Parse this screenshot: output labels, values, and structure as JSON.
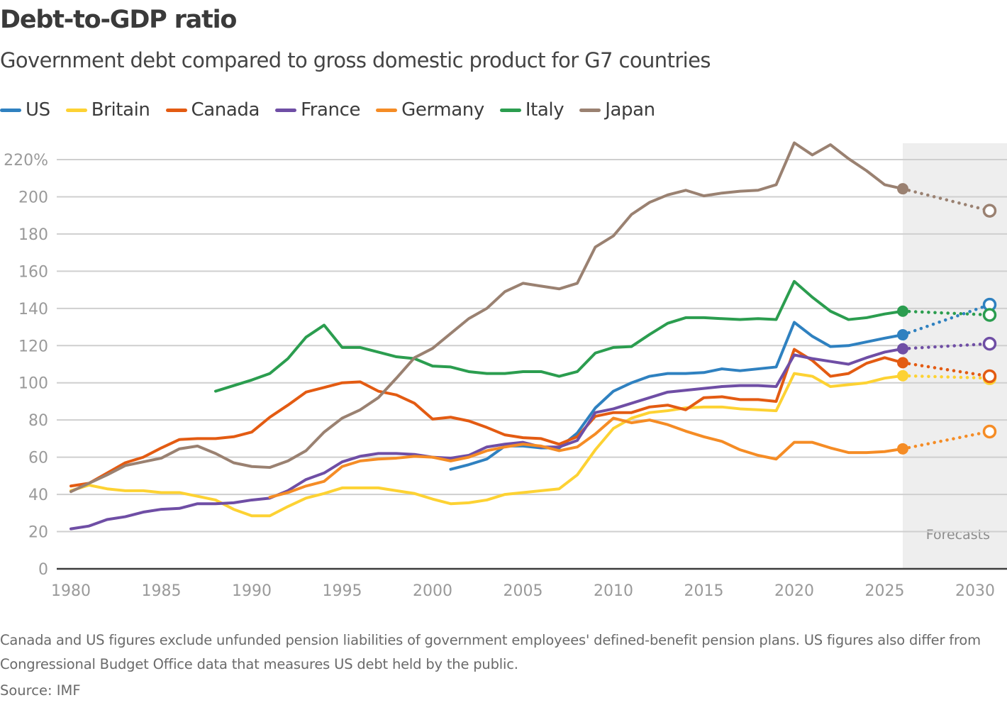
{
  "header": {
    "title": "Debt-to-GDP ratio",
    "subtitle": "Government debt compared to gross domestic product for G7 countries"
  },
  "footer": {
    "note": "Canada and US figures exclude unfunded pension liabilities of government employees' defined-benefit pension plans. US figures also differ from Congressional Budget Office data that measures US debt held by the public.",
    "source": "Source: IMF"
  },
  "chart_data": {
    "type": "line",
    "title": "Debt-to-GDP ratio",
    "subtitle": "Government debt compared to gross domestic product for G7 countries",
    "xlabel": "",
    "ylabel": "",
    "xlim": [
      1980,
      2032
    ],
    "ylim": [
      0,
      220
    ],
    "x_ticks": [
      1980,
      1985,
      1990,
      1995,
      2000,
      2005,
      2010,
      2015,
      2020,
      2025,
      2030
    ],
    "y_ticks": [
      0,
      20,
      40,
      60,
      80,
      100,
      120,
      140,
      160,
      180,
      200,
      220
    ],
    "y_tick_labels": [
      "0",
      "20",
      "40",
      "60",
      "80",
      "100",
      "120",
      "140",
      "160",
      "180",
      "200",
      "220%"
    ],
    "grid": true,
    "legend_position": "top-left",
    "forecast_region": {
      "start": 2026,
      "end": 2032,
      "label": "Forecasts"
    },
    "forecast_year": 2031,
    "series": [
      {
        "name": "US",
        "color": "#2f81c0",
        "start_year": 2001,
        "values": [
          53.5,
          56,
          59,
          66,
          66,
          65,
          65,
          73,
          86.5,
          95.5,
          100,
          103.5,
          105,
          105,
          105.5,
          107.5,
          106.5,
          107.5,
          108.5,
          132.5,
          125,
          119.5,
          120,
          122,
          124,
          125.8
        ],
        "forecast": 142
      },
      {
        "name": "Britain",
        "color": "#fdd233",
        "start_year": 1980,
        "values": [
          42,
          45,
          43,
          42,
          42,
          41,
          41,
          39,
          37,
          32,
          28.5,
          28.5,
          33.5,
          38,
          40.5,
          43.5,
          43.5,
          43.5,
          42,
          40.5,
          37.5,
          35,
          35.5,
          37,
          40,
          41,
          42,
          43,
          50.5,
          64,
          75.5,
          81,
          84,
          85,
          86.5,
          87,
          87,
          86,
          85.5,
          85,
          105,
          103.5,
          98,
          99,
          100,
          102.5,
          103.8
        ],
        "forecast": 102.5
      },
      {
        "name": "Canada",
        "color": "#e35b12",
        "start_year": 1980,
        "values": [
          44.5,
          46,
          51.5,
          57,
          60,
          65,
          69.5,
          70,
          70,
          71,
          73.5,
          81.5,
          88,
          95,
          97.5,
          100,
          100.5,
          95.5,
          93.5,
          89,
          80.5,
          81.5,
          79.5,
          76,
          72,
          70.5,
          70,
          67,
          71,
          82,
          84,
          84,
          87,
          88,
          85.5,
          92,
          92.5,
          91,
          91,
          90,
          118,
          112,
          103.5,
          105,
          110.5,
          113.5,
          110.8
        ],
        "forecast": 103.5
      },
      {
        "name": "France",
        "color": "#6f4ea5",
        "start_year": 1980,
        "values": [
          21.5,
          23,
          26.5,
          28,
          30.5,
          32,
          32.5,
          35,
          35,
          35.5,
          37,
          38,
          42,
          48,
          51.5,
          57.5,
          60.5,
          62,
          62,
          61.5,
          60,
          59.5,
          61,
          65.5,
          67,
          68,
          65.5,
          65.5,
          69,
          84,
          86,
          89,
          92,
          95,
          96,
          97,
          98,
          98.5,
          98.5,
          98,
          115,
          113,
          111.5,
          110,
          113.5,
          116.5,
          118.3
        ],
        "forecast": 121
      },
      {
        "name": "Germany",
        "color": "#f58c25",
        "start_year": 1991,
        "values": [
          38.5,
          41,
          44.5,
          47,
          55,
          58,
          59,
          59.5,
          60.5,
          60,
          58,
          60,
          63.5,
          65.5,
          67,
          66,
          63.5,
          65.5,
          72.5,
          81,
          78.5,
          80,
          77.5,
          74,
          71,
          68.5,
          64,
          61,
          59,
          68,
          68,
          65,
          62.5,
          62.5,
          63,
          64.5
        ],
        "forecast": 73.8
      },
      {
        "name": "Italy",
        "color": "#2b9d4f",
        "start_year": 1988,
        "values": [
          95.5,
          98.5,
          101.5,
          105,
          113,
          124.5,
          131,
          119,
          119,
          116.5,
          114,
          113,
          109,
          108.5,
          106,
          105,
          105,
          106,
          106,
          103.5,
          106,
          116,
          119,
          119.5,
          126,
          132,
          135,
          135,
          134.5,
          134,
          134.5,
          134,
          154.5,
          146,
          138.5,
          134,
          135,
          137,
          138.5
        ],
        "forecast": 136.5
      },
      {
        "name": "Japan",
        "color": "#9a8171",
        "start_year": 1980,
        "values": [
          41.5,
          46,
          50.5,
          55.5,
          57.5,
          59.5,
          64.5,
          66,
          62,
          57,
          55,
          54.5,
          58,
          63.5,
          73.5,
          81,
          85.5,
          92,
          102.5,
          113.5,
          118.5,
          126.5,
          134.5,
          140,
          149,
          153.5,
          152,
          150.5,
          153.5,
          173,
          179,
          190.5,
          197,
          201,
          203.5,
          200.5,
          202,
          203,
          203.5,
          206.5,
          229,
          222.5,
          228,
          220.5,
          214,
          206.5,
          204.3
        ],
        "forecast": 192.5
      }
    ]
  }
}
